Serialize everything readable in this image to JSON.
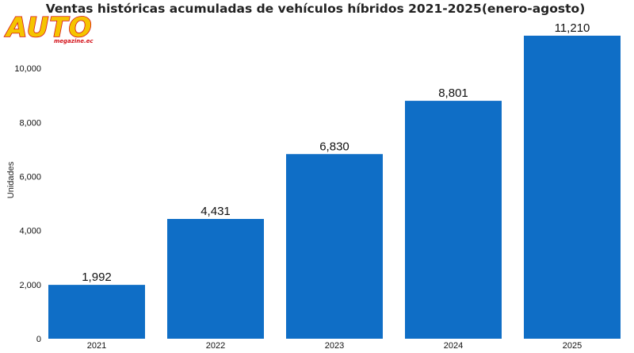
{
  "logo": {
    "main_text": "AUTO",
    "sub_text": "megazine.ec",
    "fill_color": "#f5c400",
    "outline_color": "#d4121a"
  },
  "chart_data": {
    "type": "bar",
    "title": "Ventas históricas acumuladas de vehículos híbridos 2021-2025(enero-agosto)",
    "xlabel": "",
    "ylabel": "Unidades",
    "categories": [
      "2021",
      "2022",
      "2023",
      "2024",
      "2025"
    ],
    "values": [
      1992,
      4431,
      6830,
      8801,
      11210
    ],
    "value_labels": [
      "1,992",
      "4,431",
      "6,830",
      "8,801",
      "11,210"
    ],
    "ylim": [
      0,
      11210
    ],
    "yticks": [
      0,
      2000,
      4000,
      6000,
      8000,
      10000
    ],
    "ytick_labels": [
      "0",
      "2,000",
      "4,000",
      "6,000",
      "8,000",
      "10,000"
    ],
    "bar_color": "#0f6ec6",
    "grid": false,
    "legend": "none"
  }
}
